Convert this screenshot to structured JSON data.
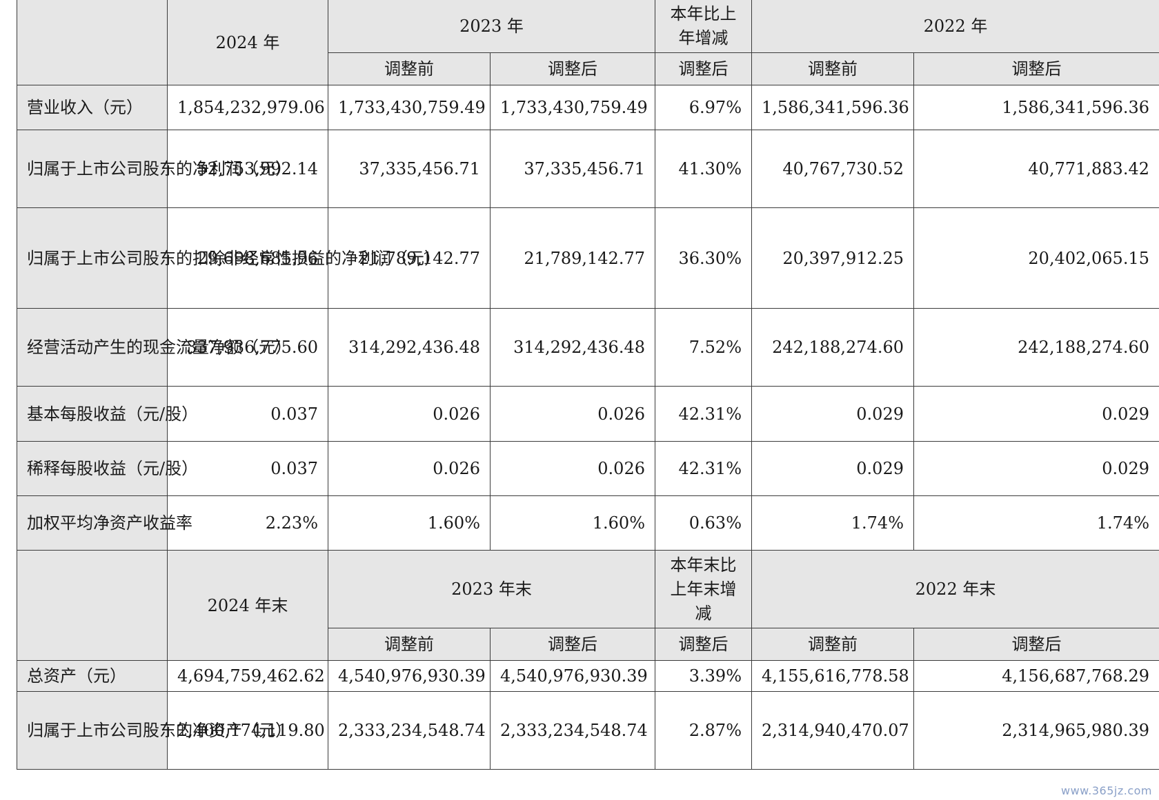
{
  "header1": {
    "y2024": "2024 年",
    "y2023": "2023 年",
    "change": "本年比上年增减",
    "y2022": "2022 年",
    "sub": [
      "调整前",
      "调整后",
      "调整后",
      "调整前",
      "调整后"
    ]
  },
  "rows1": [
    {
      "label": "营业收入（元）",
      "values": [
        "1,854,232,979.06",
        "1,733,430,759.49",
        "1,733,430,759.49",
        "6.97%",
        "1,586,341,596.36",
        "1,586,341,596.36"
      ]
    },
    {
      "label": "归属于上市公司股东的净利润（元）",
      "values": [
        "52,753,992.14",
        "37,335,456.71",
        "37,335,456.71",
        "41.30%",
        "40,767,730.52",
        "40,771,883.42"
      ]
    },
    {
      "label": "归属于上市公司股东的扣除非经常性损益的净利润（元）",
      "values": [
        "29,698,685.96",
        "21,789,142.77",
        "21,789,142.77",
        "36.30%",
        "20,397,912.25",
        "20,402,065.15"
      ]
    },
    {
      "label": "经营活动产生的现金流量净额（元）",
      "values": [
        "337,936,775.60",
        "314,292,436.48",
        "314,292,436.48",
        "7.52%",
        "242,188,274.60",
        "242,188,274.60"
      ]
    },
    {
      "label": "基本每股收益（元/股）",
      "values": [
        "0.037",
        "0.026",
        "0.026",
        "42.31%",
        "0.029",
        "0.029"
      ]
    },
    {
      "label": "稀释每股收益（元/股）",
      "values": [
        "0.037",
        "0.026",
        "0.026",
        "42.31%",
        "0.029",
        "0.029"
      ]
    },
    {
      "label": "加权平均净资产收益率",
      "values": [
        "2.23%",
        "1.60%",
        "1.60%",
        "0.63%",
        "1.74%",
        "1.74%"
      ]
    }
  ],
  "header2": {
    "y2024": "2024 年末",
    "y2023": "2023 年末",
    "change": "本年末比上年末增减",
    "y2022": "2022 年末",
    "sub": [
      "调整前",
      "调整后",
      "调整后",
      "调整前",
      "调整后"
    ]
  },
  "rows2": [
    {
      "label": "总资产（元）",
      "values": [
        "4,694,759,462.62",
        "4,540,976,930.39",
        "4,540,976,930.39",
        "3.39%",
        "4,155,616,778.58",
        "4,156,687,768.29"
      ]
    },
    {
      "label": "归属于上市公司股东的净资产（元）",
      "values": [
        "2,400,174,119.80",
        "2,333,234,548.74",
        "2,333,234,548.74",
        "2.87%",
        "2,314,940,470.07",
        "2,314,965,980.39"
      ]
    }
  ],
  "watermark": "www.365jz.com"
}
